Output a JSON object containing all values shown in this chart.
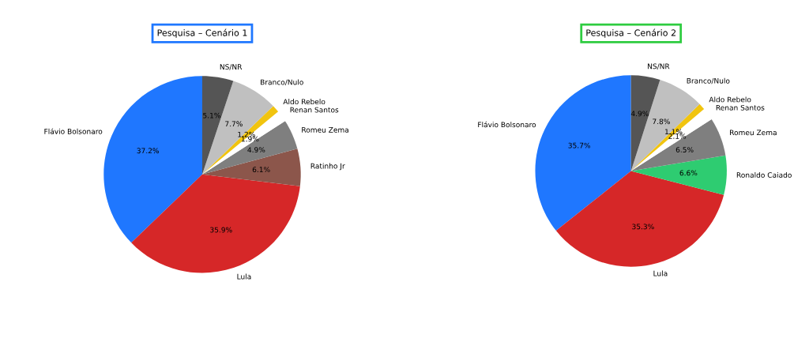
{
  "chart_data": [
    {
      "type": "pie",
      "title": "Pesquisa – Cenário 1",
      "categories": [
        "Flávio Bolsonaro",
        "Lula",
        "Ratinho Jr",
        "Romeu Zema",
        "Renan Santos",
        "Aldo Rebelo",
        "Branco/Nulo",
        "NS/NR"
      ],
      "values": [
        37.2,
        35.9,
        6.1,
        4.9,
        1.9,
        1.2,
        7.7,
        5.1
      ],
      "colors": [
        "#1f77ff",
        "#d62728",
        "#8c564b",
        "#7f7f7f",
        "#ffffff",
        "#f1c40f",
        "#c0c0c0",
        "#555555"
      ],
      "value_labels": [
        "37.2%",
        "35.9%",
        "6.1%",
        "4.9%",
        "1.9%",
        "1.2%",
        "7.7%",
        "5.1%"
      ]
    },
    {
      "type": "pie",
      "title": "Pesquisa – Cenário 2",
      "categories": [
        "Flávio Bolsonaro",
        "Lula",
        "Ronaldo Caiado",
        "Romeu Zema",
        "Renan Santos",
        "Aldo Rebelo",
        "Branco/Nulo",
        "NS/NR"
      ],
      "values": [
        35.7,
        35.3,
        6.6,
        6.5,
        2.1,
        1.1,
        7.8,
        4.9
      ],
      "colors": [
        "#1f77ff",
        "#d62728",
        "#2ecc71",
        "#7f7f7f",
        "#ffffff",
        "#f1c40f",
        "#c0c0c0",
        "#555555"
      ],
      "value_labels": [
        "35.7%",
        "35.3%",
        "6.6%",
        "6.5%",
        "2.1%",
        "1.1%",
        "7.8%",
        "4.9%"
      ]
    }
  ]
}
